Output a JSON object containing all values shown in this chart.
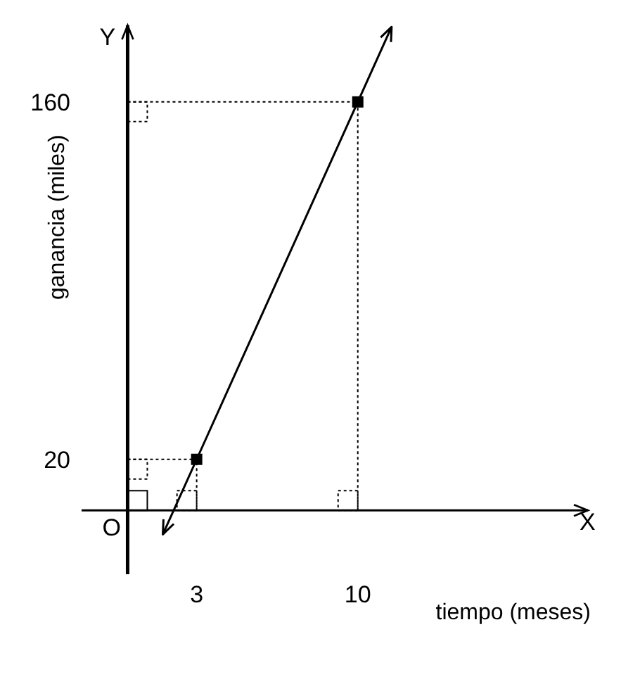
{
  "chart_data": {
    "type": "line",
    "xlabel": "tiempo (meses)",
    "ylabel": "ganancia (miles)",
    "annotations": [
      "X",
      "Y",
      "O"
    ],
    "xlim": [
      -2,
      20
    ],
    "ylim": [
      -25,
      190
    ],
    "xticks": [
      3,
      10
    ],
    "yticks": [
      20,
      160
    ],
    "series": [
      {
        "color": "#000000",
        "x": [
          3,
          10
        ],
        "values": [
          20,
          160
        ],
        "marker": "square"
      }
    ],
    "ref_lines": [
      {
        "axis": "x",
        "value": 3,
        "line_style": "dotted"
      },
      {
        "axis": "x",
        "value": 10,
        "line_style": "dotted"
      },
      {
        "axis": "y",
        "value": 20,
        "line_style": "dotted"
      },
      {
        "axis": "y",
        "value": 160,
        "line_style": "dotted"
      }
    ]
  }
}
